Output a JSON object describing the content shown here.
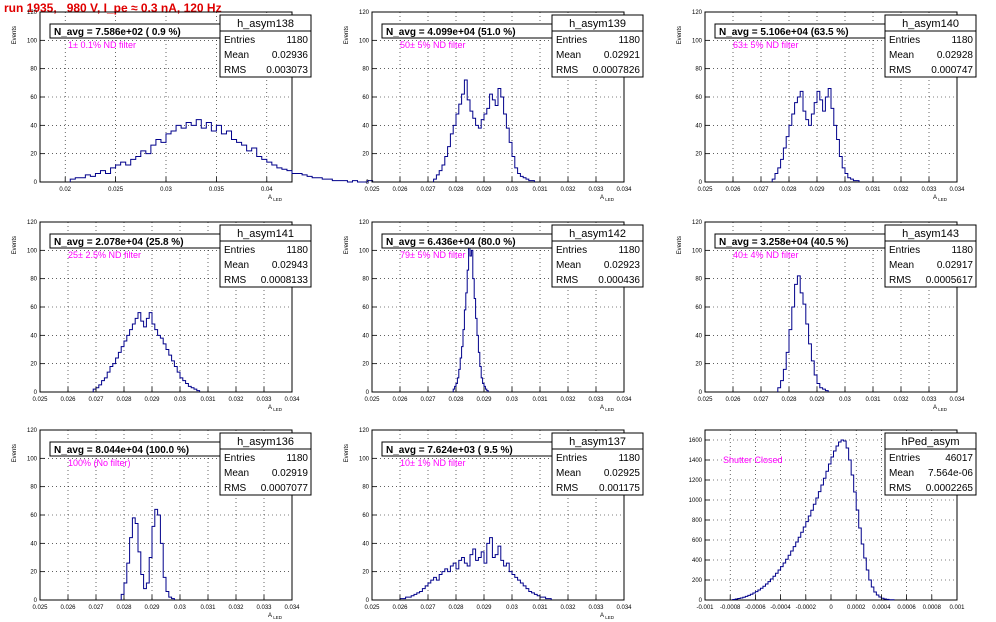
{
  "run_title": "run 1935,   980 V, I_pe ≈ 0.3 nA, 120 Hz",
  "colors": {
    "title": "#e00000",
    "histogram": "#00008b",
    "filter_label": "#ff00ff"
  },
  "stat_labels": {
    "entries": "Entries",
    "mean": "Mean",
    "rms": "RMS"
  },
  "y_axis_label": "Events",
  "x_axis_label": "A_LED",
  "chart_data": [
    {
      "type": "bar",
      "name": "h_asym138",
      "title": "N_avg = 7.586e+02 ( 0.9 %)",
      "filter": "1± 0.1% ND filter",
      "stats": {
        "entries": "1180",
        "mean": "0.02936",
        "rms": "0.003073"
      },
      "xlim": [
        0.0175,
        0.0425
      ],
      "ylim": [
        0,
        120
      ],
      "xticks": [
        0.02,
        0.025,
        0.03,
        0.035,
        0.04
      ],
      "xtick_labels": [
        "0.02",
        "0.025",
        "0.03",
        "0.035",
        "0.04"
      ],
      "yticks": [
        0,
        20,
        40,
        60,
        80,
        100,
        120
      ],
      "xlabel": "A_LED",
      "ylabel": "Events",
      "bins": {
        "start": 0.0205,
        "width": 0.0005,
        "values": [
          2,
          3,
          3,
          5,
          4,
          6,
          8,
          6,
          10,
          12,
          14,
          12,
          16,
          18,
          22,
          20,
          26,
          30,
          28,
          34,
          36,
          40,
          38,
          42,
          40,
          44,
          38,
          42,
          36,
          40,
          34,
          36,
          30,
          28,
          26,
          22,
          24,
          18,
          16,
          14,
          12,
          10,
          9,
          8,
          6,
          6,
          5,
          4,
          3,
          3,
          2,
          2,
          1,
          1,
          1,
          0,
          1,
          0,
          0,
          1
        ]
      }
    },
    {
      "type": "bar",
      "name": "h_asym139",
      "title": "N_avg = 4.099e+04 (51.0 %)",
      "filter": "50± 5% ND filter",
      "stats": {
        "entries": "1180",
        "mean": "0.02921",
        "rms": "0.0007826"
      },
      "xlim": [
        0.025,
        0.034
      ],
      "ylim": [
        0,
        120
      ],
      "xticks": [
        0.025,
        0.026,
        0.027,
        0.028,
        0.029,
        0.03,
        0.031,
        0.032,
        0.033,
        0.034
      ],
      "xtick_labels": [
        "0.025",
        "0.026",
        "0.027",
        "0.028",
        "0.029",
        "0.03",
        "0.031",
        "0.032",
        "0.033",
        "0.034"
      ],
      "yticks": [
        0,
        20,
        40,
        60,
        80,
        100,
        120
      ],
      "xlabel": "A_LED",
      "ylabel": "Events",
      "bins": {
        "start": 0.0272,
        "width": 0.0001,
        "values": [
          2,
          5,
          8,
          12,
          18,
          25,
          34,
          40,
          48,
          55,
          62,
          72,
          58,
          50,
          45,
          40,
          38,
          44,
          48,
          52,
          62,
          58,
          54,
          66,
          60,
          48,
          38,
          28,
          18,
          10,
          6,
          4,
          3,
          2,
          1,
          1
        ]
      }
    },
    {
      "type": "bar",
      "name": "h_asym140",
      "title": "N_avg = 5.106e+04 (63.5 %)",
      "filter": "63± 5% ND filter",
      "stats": {
        "entries": "1180",
        "mean": "0.02928",
        "rms": "0.000747"
      },
      "xlim": [
        0.025,
        0.034
      ],
      "ylim": [
        0,
        120
      ],
      "xticks": [
        0.025,
        0.026,
        0.027,
        0.028,
        0.029,
        0.03,
        0.031,
        0.032,
        0.033,
        0.034
      ],
      "xtick_labels": [
        "0.025",
        "0.026",
        "0.027",
        "0.028",
        "0.029",
        "0.03",
        "0.031",
        "0.032",
        "0.033",
        "0.034"
      ],
      "yticks": [
        0,
        20,
        40,
        60,
        80,
        100,
        120
      ],
      "xlabel": "A_LED",
      "ylabel": "Events",
      "bins": {
        "start": 0.0274,
        "width": 0.0001,
        "values": [
          2,
          6,
          10,
          16,
          24,
          32,
          40,
          48,
          56,
          60,
          64,
          50,
          44,
          40,
          48,
          56,
          64,
          58,
          50,
          60,
          66,
          52,
          40,
          30,
          18,
          10,
          6,
          3,
          2,
          1,
          1
        ]
      }
    },
    {
      "type": "bar",
      "name": "h_asym141",
      "title": "N_avg = 2.078e+04 (25.8 %)",
      "filter": "25± 2.5% ND filter",
      "stats": {
        "entries": "1180",
        "mean": "0.02943",
        "rms": "0.0008133"
      },
      "xlim": [
        0.025,
        0.034
      ],
      "ylim": [
        0,
        120
      ],
      "xticks": [
        0.025,
        0.026,
        0.027,
        0.028,
        0.029,
        0.03,
        0.031,
        0.032,
        0.033,
        0.034
      ],
      "xtick_labels": [
        "0.025",
        "0.026",
        "0.027",
        "0.028",
        "0.029",
        "0.03",
        "0.031",
        "0.032",
        "0.033",
        "0.034"
      ],
      "yticks": [
        0,
        20,
        40,
        60,
        80,
        100,
        120
      ],
      "xlabel": "A_LED",
      "ylabel": "Events",
      "bins": {
        "start": 0.0269,
        "width": 0.0001,
        "values": [
          2,
          3,
          5,
          8,
          10,
          14,
          18,
          20,
          24,
          28,
          32,
          36,
          40,
          44,
          48,
          52,
          56,
          50,
          46,
          52,
          56,
          48,
          44,
          40,
          38,
          34,
          30,
          26,
          22,
          18,
          14,
          10,
          8,
          6,
          4,
          3,
          2,
          1
        ]
      }
    },
    {
      "type": "bar",
      "name": "h_asym142",
      "title": "N_avg = 6.436e+04 (80.0 %)",
      "filter": "79± 5% ND filter",
      "stats": {
        "entries": "1180",
        "mean": "0.02923",
        "rms": "0.000436"
      },
      "xlim": [
        0.025,
        0.034
      ],
      "ylim": [
        0,
        120
      ],
      "xticks": [
        0.025,
        0.026,
        0.027,
        0.028,
        0.029,
        0.03,
        0.031,
        0.032,
        0.033,
        0.034
      ],
      "xtick_labels": [
        "0.025",
        "0.026",
        "0.027",
        "0.028",
        "0.029",
        "0.03",
        "0.031",
        "0.032",
        "0.033",
        "0.034"
      ],
      "yticks": [
        0,
        20,
        40,
        60,
        80,
        100,
        120
      ],
      "xlabel": "A_LED",
      "ylabel": "Events",
      "bins": {
        "start": 0.0279,
        "width": 5e-05,
        "values": [
          2,
          4,
          6,
          10,
          16,
          24,
          32,
          44,
          58,
          70,
          86,
          104,
          96,
          100,
          80,
          66,
          52,
          40,
          28,
          18,
          10,
          6,
          4,
          2,
          1
        ]
      }
    },
    {
      "type": "bar",
      "name": "h_asym143",
      "title": "N_avg = 3.258e+04 (40.5 %)",
      "filter": "40± 4% ND filter",
      "stats": {
        "entries": "1180",
        "mean": "0.02917",
        "rms": "0.0005617"
      },
      "xlim": [
        0.025,
        0.034
      ],
      "ylim": [
        0,
        120
      ],
      "xticks": [
        0.025,
        0.026,
        0.027,
        0.028,
        0.029,
        0.03,
        0.031,
        0.032,
        0.033,
        0.034
      ],
      "xtick_labels": [
        "0.025",
        "0.026",
        "0.027",
        "0.028",
        "0.029",
        "0.03",
        "0.031",
        "0.032",
        "0.033",
        "0.034"
      ],
      "yticks": [
        0,
        20,
        40,
        60,
        80,
        100,
        120
      ],
      "xlabel": "A_LED",
      "ylabel": "Events",
      "bins": {
        "start": 0.0276,
        "width": 0.0001,
        "values": [
          3,
          8,
          16,
          28,
          44,
          60,
          76,
          82,
          70,
          62,
          48,
          34,
          22,
          12,
          6,
          3,
          2,
          1
        ]
      }
    },
    {
      "type": "bar",
      "name": "h_asym136",
      "title": "N_avg = 8.044e+04 (100.0 %)",
      "filter": "100% (No filter)",
      "stats": {
        "entries": "1180",
        "mean": "0.02919",
        "rms": "0.0007077"
      },
      "xlim": [
        0.025,
        0.034
      ],
      "ylim": [
        0,
        120
      ],
      "xticks": [
        0.025,
        0.026,
        0.027,
        0.028,
        0.029,
        0.03,
        0.031,
        0.032,
        0.033,
        0.034
      ],
      "xtick_labels": [
        "0.025",
        "0.026",
        "0.027",
        "0.028",
        "0.029",
        "0.03",
        "0.031",
        "0.032",
        "0.033",
        "0.034"
      ],
      "yticks": [
        0,
        20,
        40,
        60,
        80,
        100,
        120
      ],
      "xlabel": "A_LED",
      "ylabel": "Events",
      "bins": {
        "start": 0.0279,
        "width": 0.0001,
        "values": [
          4,
          12,
          26,
          44,
          58,
          54,
          34,
          18,
          8,
          12,
          30,
          52,
          64,
          60,
          40,
          16,
          6,
          2,
          1
        ]
      }
    },
    {
      "type": "bar",
      "name": "h_asym137",
      "title": "N_avg = 7.624e+03 ( 9.5 %)",
      "filter": "10± 1% ND filter",
      "stats": {
        "entries": "1180",
        "mean": "0.02925",
        "rms": "0.001175"
      },
      "xlim": [
        0.025,
        0.034
      ],
      "ylim": [
        0,
        120
      ],
      "xticks": [
        0.025,
        0.026,
        0.027,
        0.028,
        0.029,
        0.03,
        0.031,
        0.032,
        0.033,
        0.034
      ],
      "xtick_labels": [
        "0.025",
        "0.026",
        "0.027",
        "0.028",
        "0.029",
        "0.03",
        "0.031",
        "0.032",
        "0.033",
        "0.034"
      ],
      "yticks": [
        0,
        20,
        40,
        60,
        80,
        100,
        120
      ],
      "xlabel": "A_LED",
      "ylabel": "Events",
      "bins": {
        "start": 0.026,
        "width": 0.0001,
        "values": [
          1,
          1,
          2,
          2,
          3,
          4,
          5,
          6,
          8,
          10,
          12,
          14,
          16,
          14,
          18,
          20,
          22,
          20,
          24,
          26,
          22,
          28,
          30,
          26,
          24,
          32,
          36,
          28,
          30,
          34,
          26,
          40,
          44,
          30,
          32,
          38,
          28,
          24,
          26,
          20,
          18,
          16,
          14,
          12,
          10,
          8,
          6,
          5,
          4,
          3,
          2,
          2,
          1,
          1
        ]
      }
    },
    {
      "type": "bar",
      "name": "hPed_asym",
      "title": "",
      "filter": "Shutter Closed",
      "stats": {
        "entries": "46017",
        "mean": "7.564e-06",
        "rms": "0.0002265"
      },
      "xlim": [
        -0.001,
        0.001
      ],
      "ylim": [
        0,
        1700
      ],
      "xticks": [
        -0.001,
        -0.0008,
        -0.0006,
        -0.0004,
        -0.0002,
        0,
        0.0002,
        0.0004,
        0.0006,
        0.0008,
        0.001
      ],
      "xtick_labels": [
        "-0.001",
        "-0.0008",
        "-0.0006",
        "-0.0004",
        "-0.0002",
        "0",
        "0.0002",
        "0.0004",
        "0.0006",
        "0.0008",
        "0.001"
      ],
      "yticks": [
        0,
        200,
        400,
        600,
        800,
        1000,
        1200,
        1400,
        1600
      ],
      "xlabel": "",
      "ylabel": "",
      "bins": {
        "start": -0.00078,
        "width": 2e-05,
        "values": [
          5,
          10,
          15,
          20,
          28,
          36,
          46,
          58,
          70,
          84,
          100,
          118,
          138,
          160,
          184,
          210,
          238,
          268,
          300,
          334,
          370,
          408,
          448,
          490,
          534,
          580,
          628,
          678,
          730,
          784,
          840,
          898,
          958,
          1020,
          1084,
          1150,
          1218,
          1288,
          1360,
          1430,
          1490,
          1540,
          1580,
          1600,
          1590,
          1520,
          1400,
          1250,
          1080,
          900,
          720,
          560,
          420,
          300,
          200,
          130,
          80,
          50,
          30,
          18,
          10,
          6,
          3,
          2
        ]
      }
    }
  ]
}
